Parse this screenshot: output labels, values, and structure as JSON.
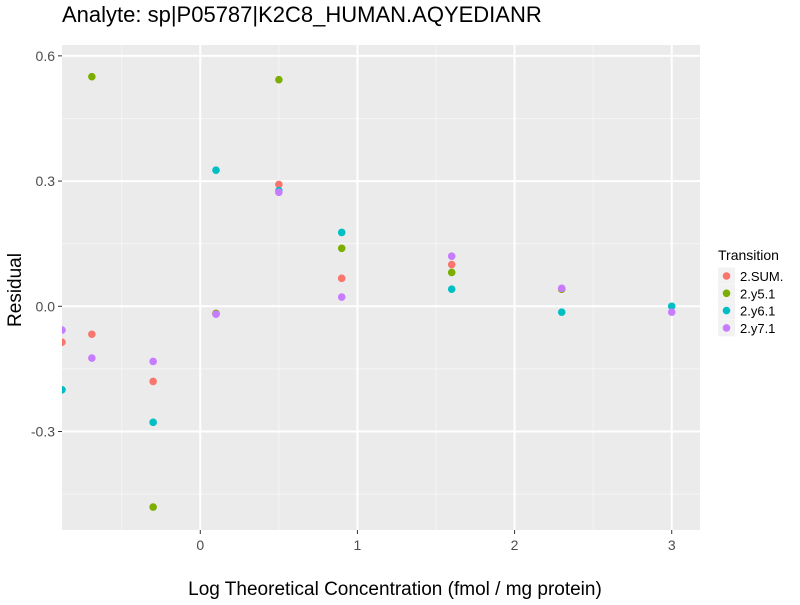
{
  "chart_data": {
    "type": "scatter",
    "title": "Analyte: sp|P05787|K2C8_HUMAN.AQYEDIANR",
    "xlabel": "Log Theoretical Concentration (fmol / mg protein)",
    "ylabel": "Residual",
    "xlim": [
      -0.88,
      3.18
    ],
    "ylim": [
      -0.536,
      0.626
    ],
    "x_ticks": [
      0,
      1,
      2,
      3
    ],
    "x_tick_labels": [
      "0",
      "1",
      "2",
      "3"
    ],
    "y_ticks": [
      0.6,
      0.3,
      0.0,
      -0.3
    ],
    "y_tick_labels": [
      "0.6",
      "0.3",
      "0.0",
      "-0.3"
    ],
    "x_minor": [
      -0.5,
      0.5,
      1.5,
      2.5
    ],
    "y_minor": [
      0.45,
      0.15,
      -0.15,
      -0.45
    ],
    "grid": true,
    "legend": {
      "title": "Transition",
      "placement": "right"
    },
    "series": [
      {
        "name": "2.SUM.",
        "color": "#F8766D",
        "x": [
          -0.88,
          -0.69,
          -0.3,
          0.1,
          0.5,
          0.9,
          1.6,
          2.3
        ],
        "y": [
          -0.086,
          -0.067,
          -0.18,
          -0.017,
          0.292,
          0.067,
          0.1,
          0.041
        ]
      },
      {
        "name": "2.y5.1",
        "color": "#7CAE00",
        "x": [
          -0.69,
          -0.3,
          0.1,
          0.5,
          0.9,
          1.6,
          2.3
        ],
        "y": [
          0.55,
          -0.481,
          -0.017,
          0.543,
          0.139,
          0.081,
          0.041
        ]
      },
      {
        "name": "2.y6.1",
        "color": "#00BFC4",
        "x": [
          -0.88,
          -0.3,
          0.1,
          0.5,
          0.9,
          1.6,
          2.3,
          3.0
        ],
        "y": [
          -0.2,
          -0.278,
          0.326,
          0.277,
          0.177,
          0.041,
          -0.014,
          0.0
        ]
      },
      {
        "name": "2.y7.1",
        "color": "#C77CFF",
        "x": [
          -0.88,
          -0.69,
          -0.3,
          0.1,
          0.5,
          0.9,
          1.6,
          2.3,
          3.0
        ],
        "y": [
          -0.057,
          -0.124,
          -0.132,
          -0.019,
          0.273,
          0.022,
          0.12,
          0.043,
          -0.014
        ]
      }
    ]
  }
}
